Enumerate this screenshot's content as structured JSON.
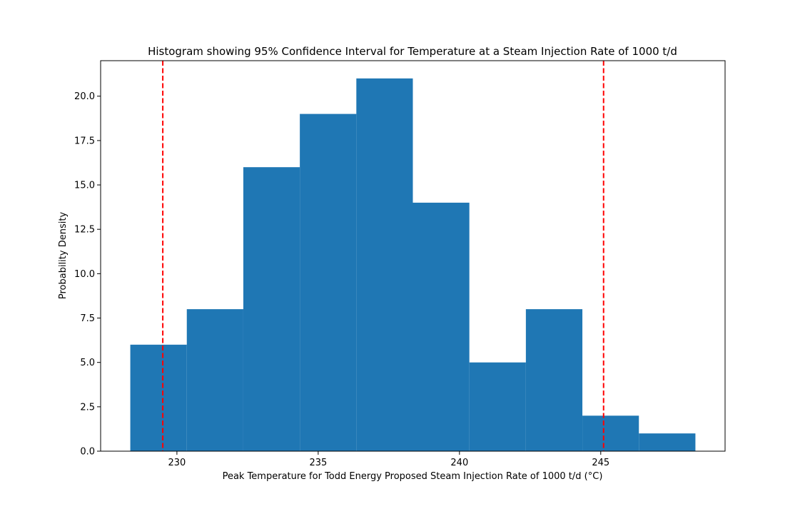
{
  "chart_data": {
    "type": "bar",
    "title": "Histogram showing 95% Confidence Interval for Temperature at a Steam Injection Rate of 1000 t/d",
    "xlabel": "Peak Temperature for Todd Energy Proposed Steam Injection Rate of 1000 t/d (°C)",
    "ylabel": "Probability Density",
    "bin_edges": [
      228.35,
      230.35,
      232.35,
      234.35,
      236.35,
      238.35,
      240.35,
      242.35,
      244.35,
      246.35,
      248.35
    ],
    "values": [
      6,
      8,
      16,
      19,
      21,
      14,
      5,
      8,
      2,
      1
    ],
    "xlim": [
      227.3,
      249.4
    ],
    "ylim": [
      0,
      22
    ],
    "xticks": [
      230,
      235,
      240,
      245
    ],
    "xtick_labels": [
      "230",
      "235",
      "240",
      "245"
    ],
    "yticks": [
      0,
      2.5,
      5,
      7.5,
      10,
      12.5,
      15,
      17.5,
      20
    ],
    "ytick_labels": [
      "0.0",
      "2.5",
      "5.0",
      "7.5",
      "10.0",
      "12.5",
      "15.0",
      "17.5",
      "20.0"
    ],
    "ci_lines": [
      229.5,
      245.1
    ],
    "bar_color": "#1f77b4",
    "ci_line_color": "#ff0000",
    "grid": false
  }
}
